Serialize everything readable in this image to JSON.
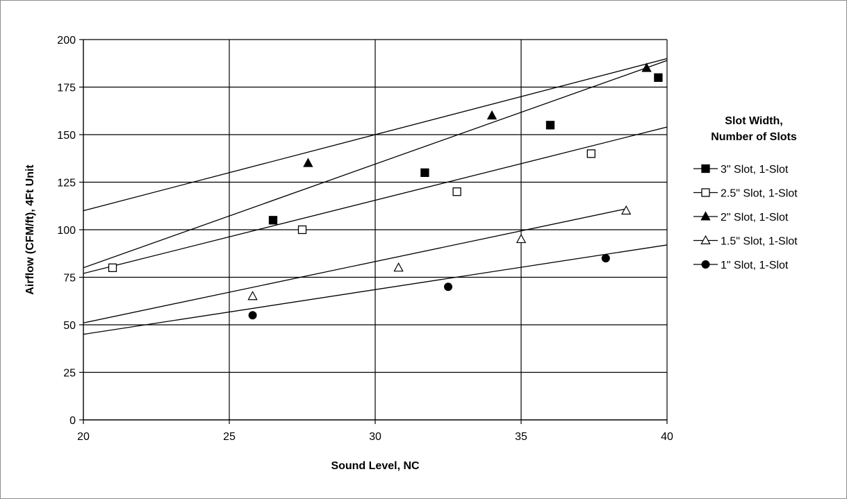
{
  "chart_data": {
    "type": "scatter",
    "xlabel": "Sound Level, NC",
    "ylabel": "Airflow (CFM/ft), 4Ft Unit",
    "xlim": [
      20,
      40
    ],
    "ylim": [
      0,
      200
    ],
    "x_ticks": [
      20,
      25,
      30,
      35,
      40
    ],
    "y_ticks": [
      0,
      25,
      50,
      75,
      100,
      125,
      150,
      175,
      200
    ],
    "grid": "vertical and horizontal gridlines",
    "legend_title_lines": [
      "Slot Width,",
      "Number of Slots"
    ],
    "legend_position": "right",
    "series": [
      {
        "name": "3\" Slot, 1-Slot",
        "marker": "filled-square",
        "x": [
          26.5,
          31.7,
          36.0,
          39.7
        ],
        "y": [
          105,
          130,
          155,
          180
        ],
        "trendline": [
          [
            20,
            80
          ],
          [
            40,
            189
          ]
        ]
      },
      {
        "name": "2.5\" Slot, 1-Slot",
        "marker": "open-square",
        "x": [
          21.0,
          27.5,
          32.8,
          37.4
        ],
        "y": [
          80,
          100,
          120,
          140
        ],
        "trendline": [
          [
            20,
            77
          ],
          [
            40,
            154
          ]
        ]
      },
      {
        "name": "2\" Slot, 1-Slot",
        "marker": "filled-triangle",
        "x": [
          27.7,
          34.0,
          39.3
        ],
        "y": [
          135,
          160,
          185
        ],
        "trendline": [
          [
            20,
            110
          ],
          [
            40,
            190
          ]
        ]
      },
      {
        "name": "1.5\" Slot, 1-Slot",
        "marker": "open-triangle",
        "x": [
          25.8,
          30.8,
          35.0,
          38.6
        ],
        "y": [
          65,
          80,
          95,
          110
        ],
        "trendline": [
          [
            20,
            51
          ],
          [
            38.6,
            111
          ]
        ]
      },
      {
        "name": "1\" Slot, 1-Slot",
        "marker": "filled-circle",
        "x": [
          25.8,
          32.5,
          37.9
        ],
        "y": [
          55,
          70,
          85
        ],
        "trendline": [
          [
            20,
            45
          ],
          [
            40,
            92
          ]
        ]
      }
    ]
  }
}
